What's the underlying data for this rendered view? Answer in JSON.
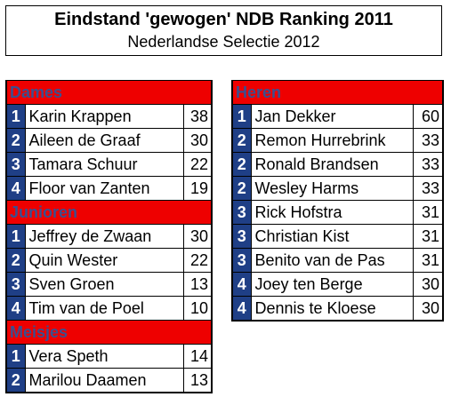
{
  "title": {
    "main": "Eindstand 'gewogen' NDB Ranking 2011",
    "sub": "Nederlandse Selectie 2012"
  },
  "colors": {
    "header_bg": "#ee0000",
    "header_text": "#3b4f8f",
    "rank_bg": "#1f3f86"
  },
  "left_sections": [
    {
      "header": "Dames",
      "rows": [
        {
          "rank": "1",
          "name": "Karin Krappen",
          "score": "38"
        },
        {
          "rank": "2",
          "name": "Aileen de Graaf",
          "score": "30"
        },
        {
          "rank": "3",
          "name": "Tamara Schuur",
          "score": "22"
        },
        {
          "rank": "4",
          "name": "Floor van Zanten",
          "score": "19"
        }
      ]
    },
    {
      "header": "Junioren",
      "rows": [
        {
          "rank": "1",
          "name": "Jeffrey de Zwaan",
          "score": "30"
        },
        {
          "rank": "2",
          "name": "Quin Wester",
          "score": "22"
        },
        {
          "rank": "3",
          "name": "Sven Groen",
          "score": "13"
        },
        {
          "rank": "4",
          "name": "Tim van de Poel",
          "score": "10"
        }
      ]
    },
    {
      "header": "Meisjes",
      "rows": [
        {
          "rank": "1",
          "name": "Vera Speth",
          "score": "14"
        },
        {
          "rank": "2",
          "name": "Marilou Daamen",
          "score": "13"
        }
      ]
    }
  ],
  "right_sections": [
    {
      "header": "Heren",
      "rows": [
        {
          "rank": "1",
          "name": "Jan Dekker",
          "score": "60"
        },
        {
          "rank": "2",
          "name": "Remon Hurrebrink",
          "score": "33"
        },
        {
          "rank": "2",
          "name": "Ronald Brandsen",
          "score": "33"
        },
        {
          "rank": "2",
          "name": "Wesley Harms",
          "score": "33"
        },
        {
          "rank": "3",
          "name": "Rick Hofstra",
          "score": "31"
        },
        {
          "rank": "3",
          "name": "Christian Kist",
          "score": "31"
        },
        {
          "rank": "3",
          "name": "Benito van de Pas",
          "score": "31"
        },
        {
          "rank": "4",
          "name": "Joey ten Berge",
          "score": "30"
        },
        {
          "rank": "4",
          "name": "Dennis te Kloese",
          "score": "30"
        }
      ]
    }
  ]
}
